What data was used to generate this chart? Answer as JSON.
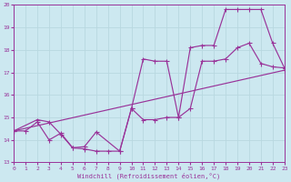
{
  "bg_color": "#cce8f0",
  "grid_color": "#b8d8e0",
  "line_color": "#993399",
  "xmin": 0,
  "xmax": 23,
  "ymin": 13,
  "ymax": 20,
  "line1_x": [
    0,
    1,
    2,
    3,
    4,
    5,
    6,
    7,
    8,
    9,
    10,
    11,
    12,
    13,
    14,
    15,
    16,
    17,
    18,
    19,
    20,
    21,
    22,
    23
  ],
  "line1_y": [
    14.4,
    14.4,
    14.8,
    14.0,
    14.3,
    13.65,
    13.6,
    13.5,
    13.5,
    13.5,
    15.4,
    14.9,
    14.9,
    15.0,
    15.0,
    15.4,
    17.5,
    17.5,
    17.6,
    18.1,
    18.3,
    17.4,
    17.25,
    17.2
  ],
  "line2_x": [
    0,
    2,
    3,
    4,
    5,
    6,
    7,
    9,
    10,
    11,
    12,
    13,
    14,
    15,
    16,
    17,
    18,
    19,
    20,
    21,
    22,
    23
  ],
  "line2_y": [
    14.4,
    14.9,
    14.8,
    14.25,
    13.65,
    13.7,
    14.35,
    13.5,
    15.4,
    17.6,
    17.5,
    17.5,
    15.0,
    18.1,
    18.2,
    18.2,
    19.8,
    19.8,
    19.8,
    19.8,
    18.3,
    17.2
  ],
  "line3_x": [
    0,
    23
  ],
  "line3_y": [
    14.4,
    17.1
  ],
  "xlabel": "Windchill (Refroidissement éolien,°C)"
}
